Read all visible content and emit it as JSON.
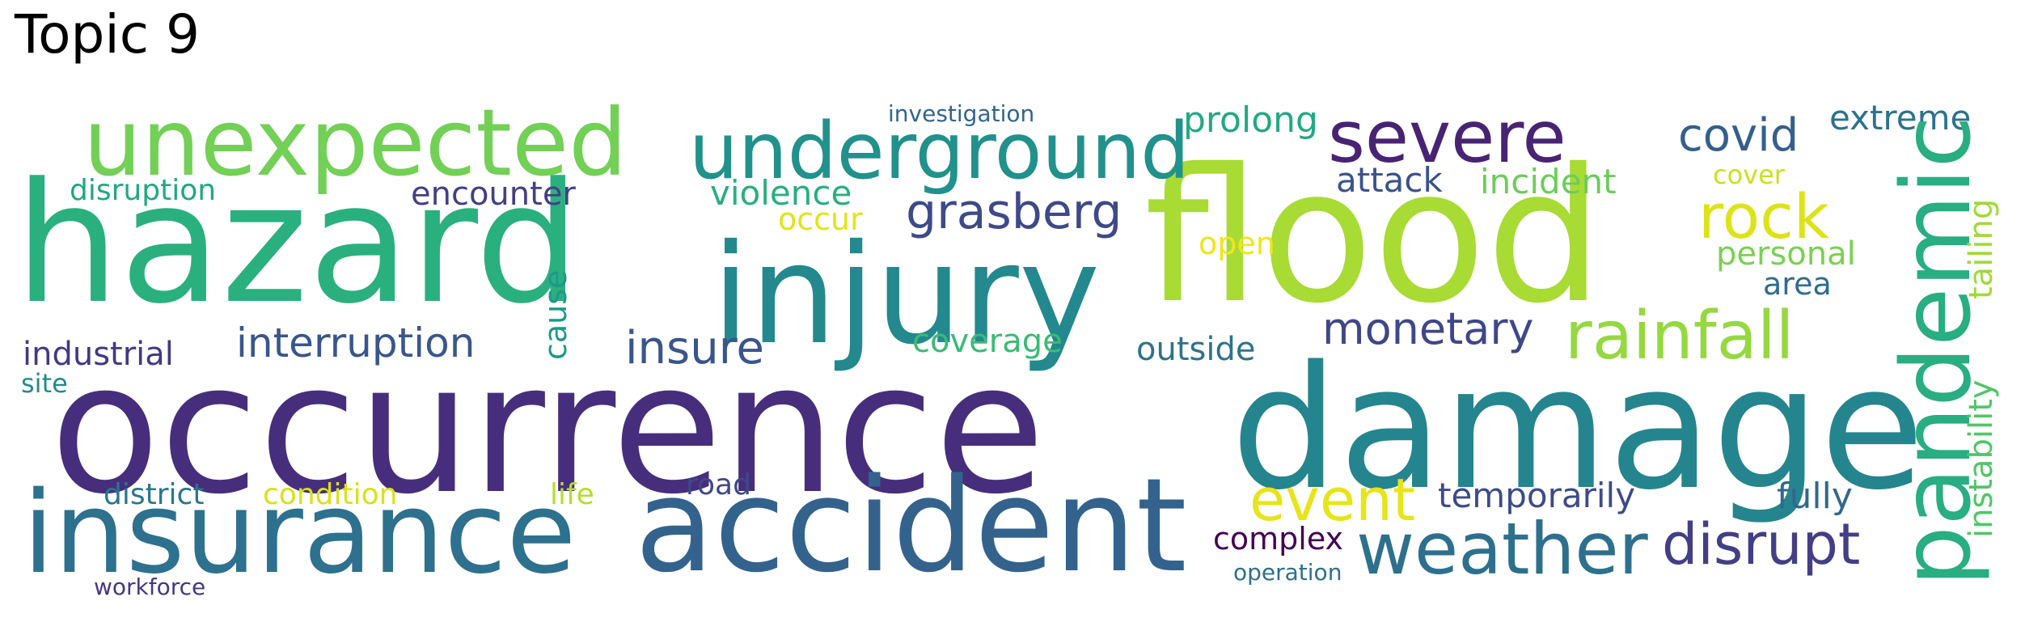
{
  "title": "Topic 9",
  "words": [
    {
      "text": "occurrence",
      "color": "#472e7c"
    },
    {
      "text": "damage",
      "color": "#25858e"
    },
    {
      "text": "hazard",
      "color": "#2ab07f"
    },
    {
      "text": "flood",
      "color": "#a8db34"
    },
    {
      "text": "injury",
      "color": "#23898e"
    },
    {
      "text": "insurance",
      "color": "#2d718e"
    },
    {
      "text": "accident",
      "color": "#33638d"
    },
    {
      "text": "pandemic",
      "color": "#28ae80"
    },
    {
      "text": "unexpected",
      "color": "#73d056"
    },
    {
      "text": "underground",
      "color": "#21918c"
    },
    {
      "text": "weather",
      "color": "#2d708e"
    },
    {
      "text": "severe",
      "color": "#482374"
    },
    {
      "text": "rainfall",
      "color": "#95d840"
    },
    {
      "text": "disrupt",
      "color": "#433e85"
    },
    {
      "text": "rock",
      "color": "#dde318"
    },
    {
      "text": "event",
      "color": "#e7e419"
    },
    {
      "text": "grasberg",
      "color": "#3e4989"
    },
    {
      "text": "interruption",
      "color": "#39568c"
    },
    {
      "text": "monetary",
      "color": "#3f4788"
    },
    {
      "text": "insure",
      "color": "#39558c"
    },
    {
      "text": "covid",
      "color": "#355f8d"
    },
    {
      "text": "extreme",
      "color": "#2c728e"
    },
    {
      "text": "violence",
      "color": "#29af7f"
    },
    {
      "text": "encounter",
      "color": "#424086"
    },
    {
      "text": "incident",
      "color": "#6ccd5a"
    },
    {
      "text": "attack",
      "color": "#3b528b"
    },
    {
      "text": "prolong",
      "color": "#22a884"
    },
    {
      "text": "instability",
      "color": "#52c569"
    },
    {
      "text": "temporarily",
      "color": "#3e4a89"
    },
    {
      "text": "fully",
      "color": "#31688e"
    },
    {
      "text": "complex",
      "color": "#440154"
    },
    {
      "text": "coverage",
      "color": "#3bbb75"
    },
    {
      "text": "outside",
      "color": "#2c738e"
    },
    {
      "text": "personal",
      "color": "#7ad151"
    },
    {
      "text": "tailing",
      "color": "#a0da39"
    },
    {
      "text": "industrial",
      "color": "#443983"
    },
    {
      "text": "disruption",
      "color": "#22a785"
    },
    {
      "text": "cause",
      "color": "#1f988b"
    },
    {
      "text": "occur",
      "color": "#e2e418"
    },
    {
      "text": "open",
      "color": "#f1e51d"
    },
    {
      "text": "area",
      "color": "#2f6c8e"
    },
    {
      "text": "condition",
      "color": "#d8e219"
    },
    {
      "text": "district",
      "color": "#2a768e"
    },
    {
      "text": "road",
      "color": "#3f4889"
    },
    {
      "text": "life",
      "color": "#b5de2b"
    },
    {
      "text": "cover",
      "color": "#cae11f"
    },
    {
      "text": "site",
      "color": "#238a8d"
    },
    {
      "text": "investigation",
      "color": "#32648e"
    },
    {
      "text": "operation",
      "color": "#2e6f8e"
    },
    {
      "text": "workforce",
      "color": "#453781"
    }
  ]
}
